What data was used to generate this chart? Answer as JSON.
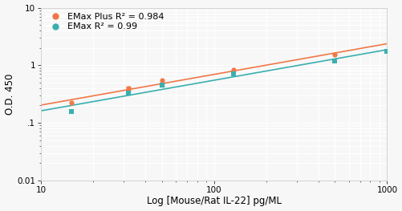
{
  "emax_plus": {
    "x": [
      15,
      32,
      50,
      130,
      500
    ],
    "y": [
      0.22,
      0.4,
      0.54,
      0.82,
      1.52
    ],
    "color": "#f07848",
    "label": "EMax Plus R² = 0.984",
    "marker": "o"
  },
  "emax": {
    "x": [
      15,
      32,
      50,
      130,
      500,
      1000
    ],
    "y": [
      0.155,
      0.33,
      0.455,
      0.715,
      1.18,
      1.75
    ],
    "color": "#3aafaf",
    "label": "EMax R² = 0.99",
    "marker": "s"
  },
  "emax_plus_yerr": [
    0.0,
    0.03,
    0.0,
    0.0,
    0.0
  ],
  "emax_yerr": [
    0.0,
    0.025,
    0.025,
    0.0,
    0.0,
    0.0
  ],
  "xlim": [
    10,
    1000
  ],
  "ylim": [
    0.01,
    10
  ],
  "xlabel": "Log [Mouse/Rat IL-22] pg/ML",
  "ylabel": "O.D. 450",
  "bg_color": "#f7f7f7",
  "grid_color": "#ffffff",
  "label_fontsize": 8.5,
  "tick_fontsize": 7.5,
  "legend_fontsize": 8
}
